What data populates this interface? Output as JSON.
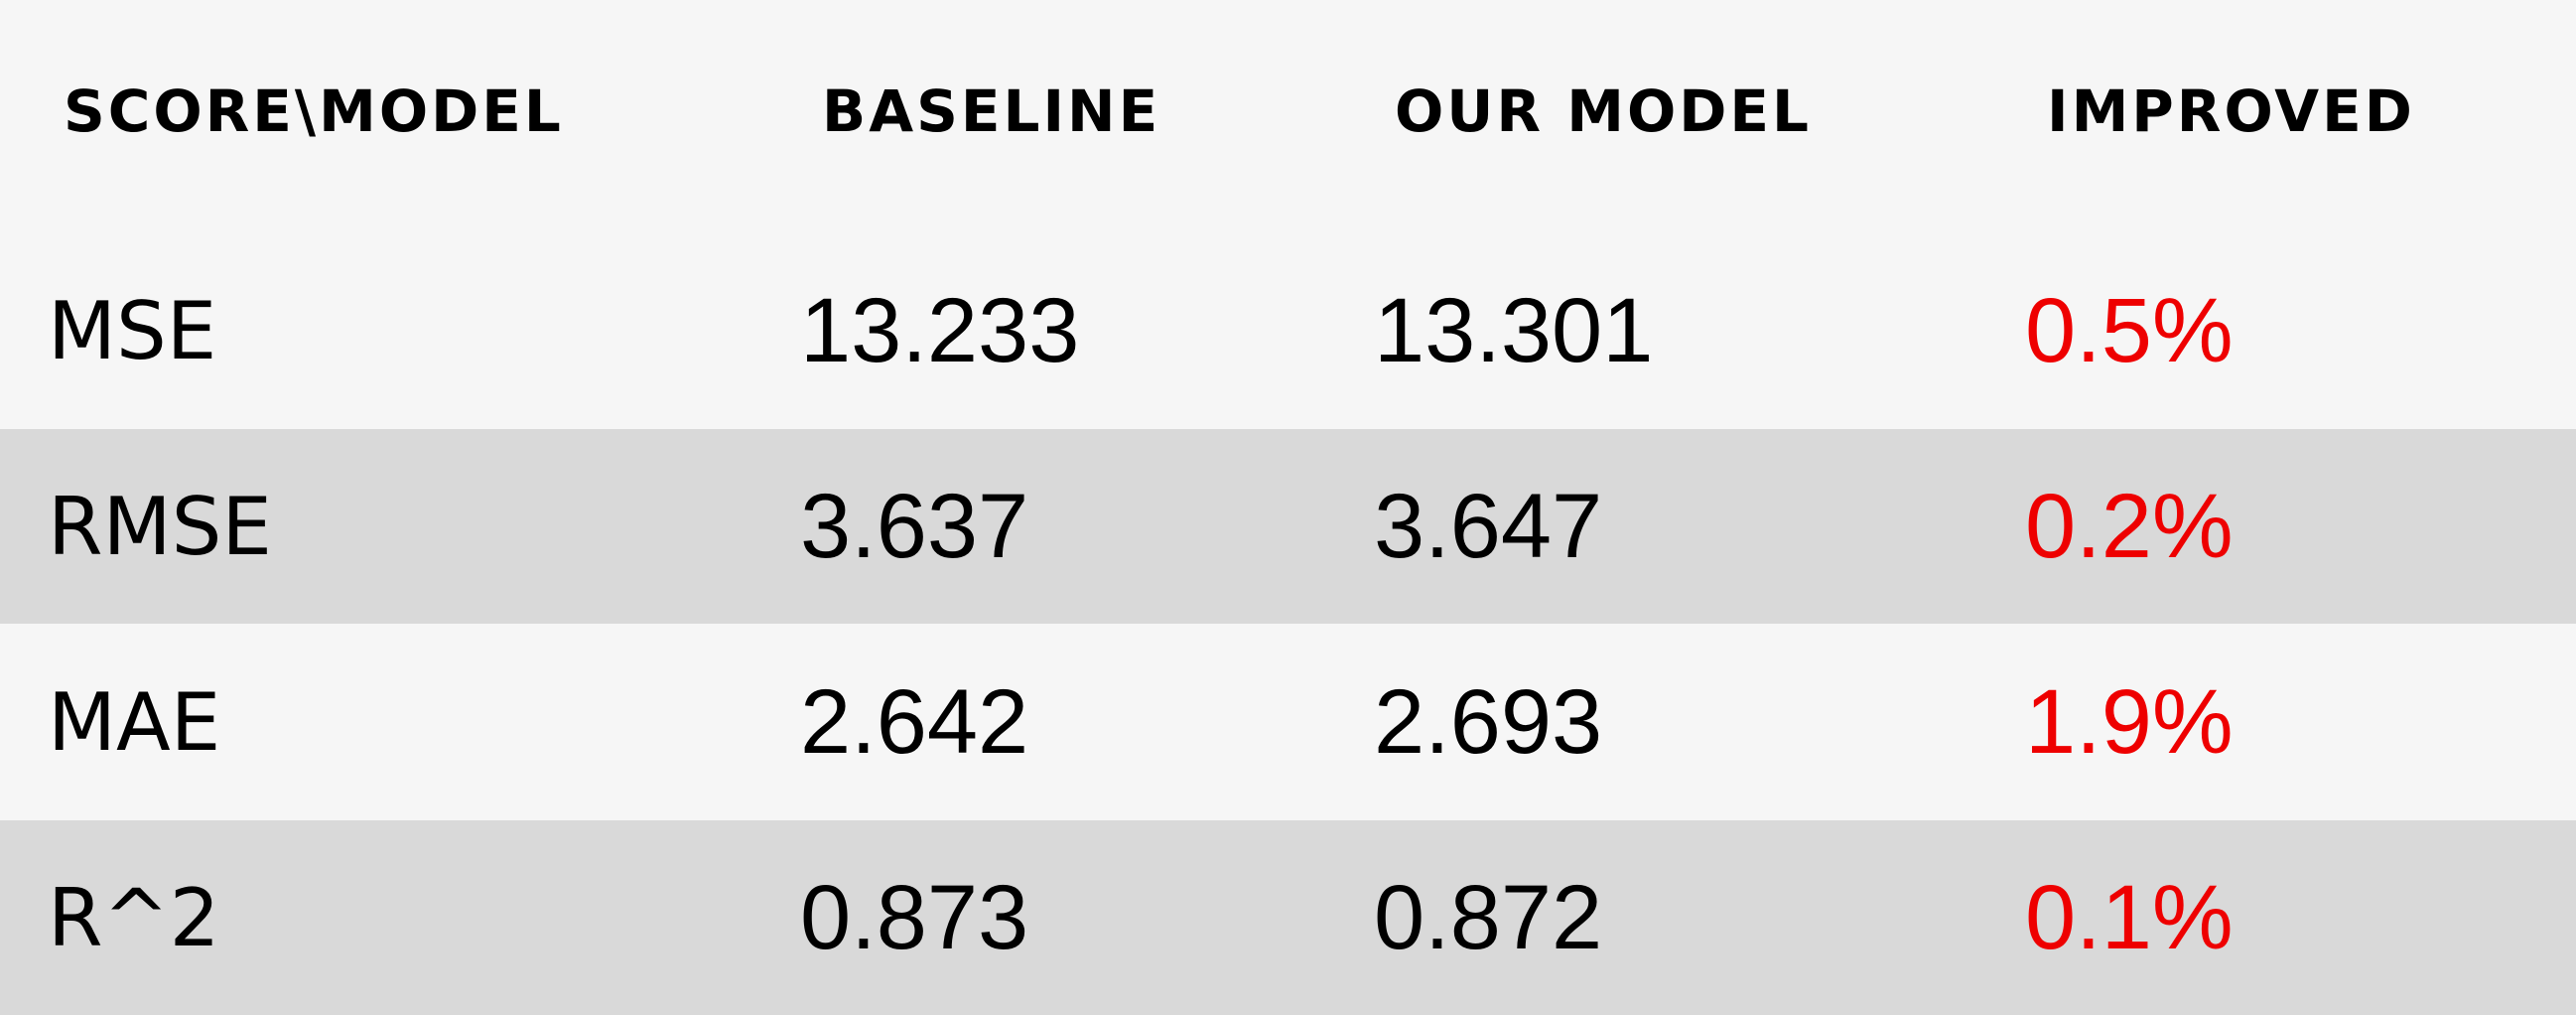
{
  "chart_data": {
    "type": "table",
    "columns": [
      "SCORE\\MODEL",
      "BASELINE",
      "OUR MODEL",
      "IMPROVED"
    ],
    "rows": [
      {
        "metric": "MSE",
        "baseline": "13.233",
        "our_model": "13.301",
        "improved": "0.5%"
      },
      {
        "metric": "RMSE",
        "baseline": "3.637",
        "our_model": "3.647",
        "improved": "0.2%"
      },
      {
        "metric": "MAE",
        "baseline": "2.642",
        "our_model": "2.693",
        "improved": "1.9%"
      },
      {
        "metric": "R^2",
        "baseline": "0.873",
        "our_model": "0.872",
        "improved": "0.1%"
      }
    ]
  },
  "colors": {
    "light_row": "#f6f6f6",
    "dark_row": "#d9d9d9",
    "improved_text": "#ee0000",
    "text": "#000000"
  }
}
